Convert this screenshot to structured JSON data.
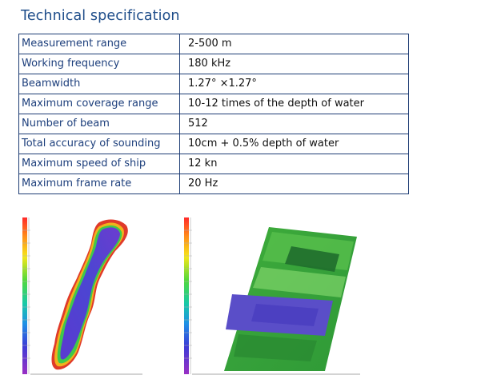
{
  "title": "Technical specification",
  "specs": [
    {
      "label": "Measurement range",
      "value": "2-500 m"
    },
    {
      "label": "Working frequency",
      "value": "180 kHz"
    },
    {
      "label": "Beamwidth",
      "value": "1.27° ×1.27°"
    },
    {
      "label": "Maximum coverage range",
      "value": "10-12 times of the depth of water"
    },
    {
      "label": "Number of beam",
      "value": "512"
    },
    {
      "label": "Total accuracy of sounding",
      "value": "10cm + 0.5% depth of water"
    },
    {
      "label": "Maximum speed of ship",
      "value": "12 kn"
    },
    {
      "label": "Maximum frame rate",
      "value": "20 Hz"
    }
  ],
  "colors": {
    "title": "#1e4d8a",
    "table_border": "#1d3c74",
    "label_text": "#1d3f7c"
  }
}
